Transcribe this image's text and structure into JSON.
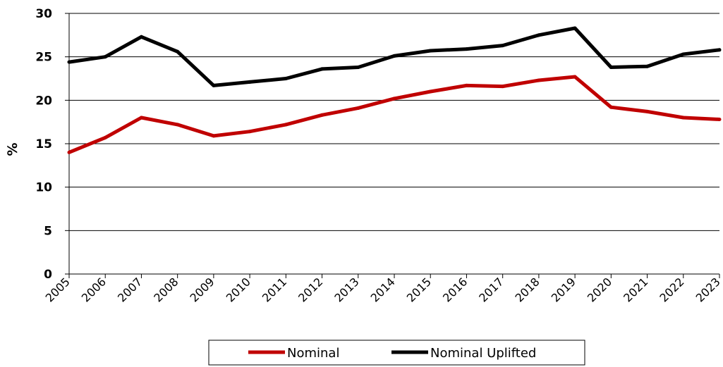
{
  "chart_data": {
    "type": "line",
    "categories": [
      "2005",
      "2006",
      "2007",
      "2008",
      "2009",
      "2010",
      "2011",
      "2012",
      "2013",
      "2014",
      "2015",
      "2016",
      "2017",
      "2018",
      "2019",
      "2020",
      "2021",
      "2022",
      "2023"
    ],
    "series": [
      {
        "name": "Nominal",
        "color": "#c00000",
        "values": [
          14.0,
          15.7,
          18.0,
          17.2,
          15.9,
          16.4,
          17.2,
          18.3,
          19.1,
          20.2,
          21.0,
          21.7,
          21.6,
          22.3,
          22.7,
          19.2,
          18.7,
          18.0,
          17.8
        ]
      },
      {
        "name": "Nominal Uplifted",
        "color": "#000000",
        "values": [
          24.4,
          25.0,
          27.3,
          25.6,
          21.7,
          22.1,
          22.5,
          23.6,
          23.8,
          25.1,
          25.7,
          25.9,
          26.3,
          27.5,
          28.3,
          23.8,
          23.9,
          25.3,
          25.8
        ]
      }
    ],
    "title": "",
    "xlabel": "",
    "ylabel": "%",
    "ylim": [
      0,
      30
    ],
    "yticks": [
      "0",
      "5",
      "10",
      "15",
      "20",
      "25",
      "30"
    ],
    "grid": "horizontal",
    "legend_position": "bottom"
  }
}
